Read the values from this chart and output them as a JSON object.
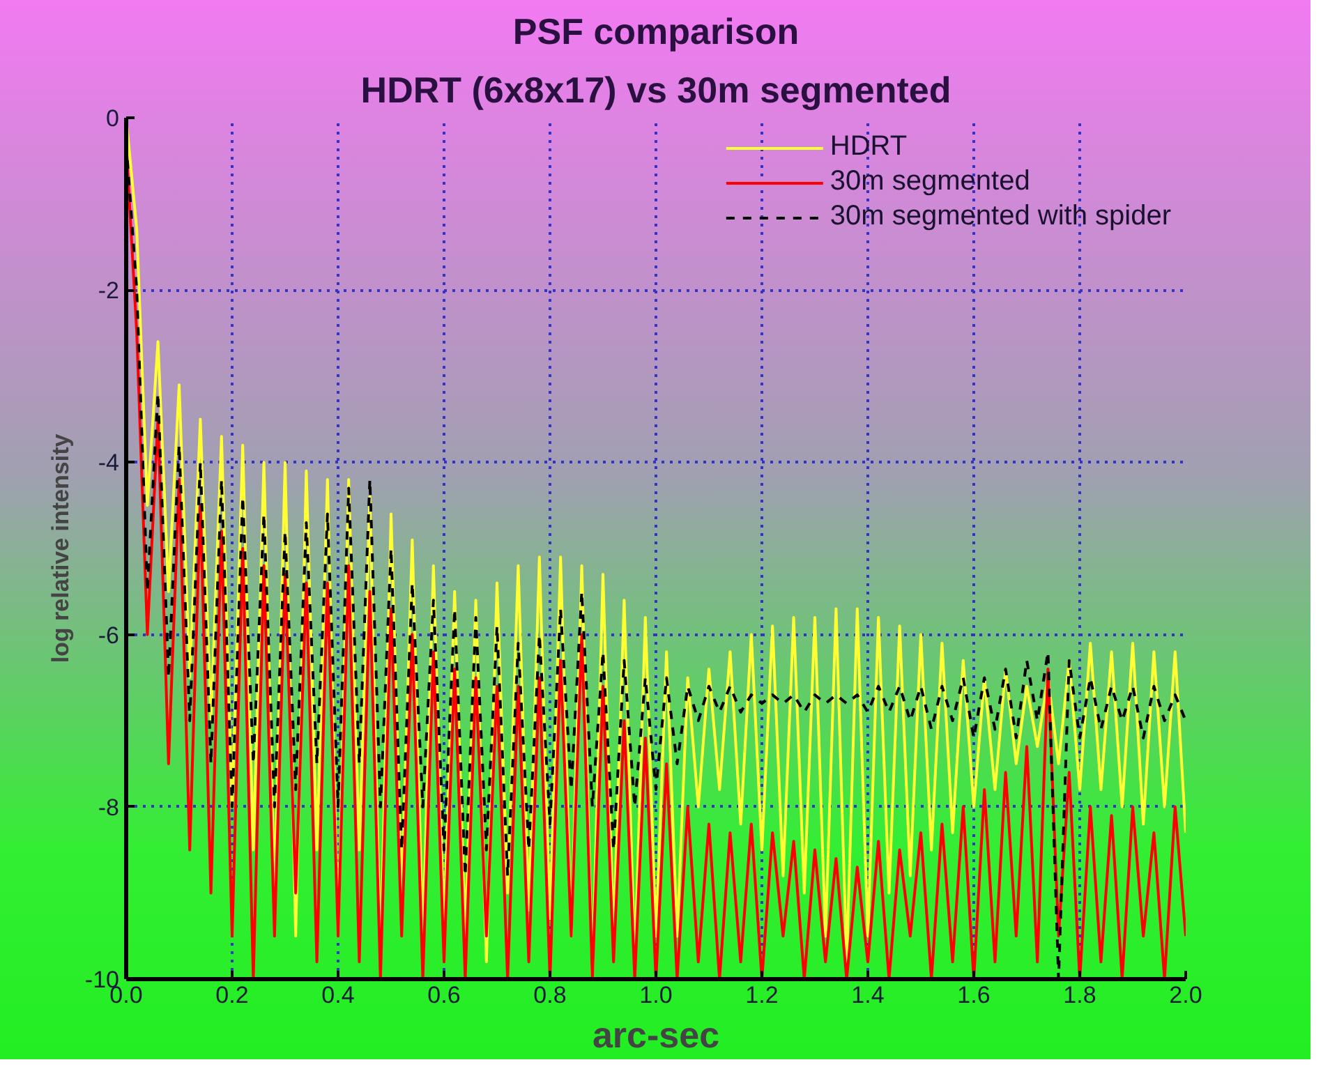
{
  "chart_data": {
    "type": "line",
    "title": "PSF comparison",
    "subtitle": "HDRT (6x8x17) vs 30m segmented",
    "xlabel": "arc-sec",
    "ylabel": "log relative intensity",
    "x": [
      0,
      0.02,
      0.04,
      0.06,
      0.08,
      0.1,
      0.12,
      0.14,
      0.16,
      0.18,
      0.2,
      0.22,
      0.24,
      0.26,
      0.28,
      0.3,
      0.32,
      0.34,
      0.36,
      0.38,
      0.4,
      0.42,
      0.44,
      0.46,
      0.48,
      0.5,
      0.52,
      0.54,
      0.56,
      0.58,
      0.6,
      0.62,
      0.64,
      0.66,
      0.68,
      0.7,
      0.72,
      0.74,
      0.76,
      0.78,
      0.8,
      0.82,
      0.84,
      0.86,
      0.88,
      0.9,
      0.92,
      0.94,
      0.96,
      0.98,
      1.0,
      1.02,
      1.04,
      1.06,
      1.08,
      1.1,
      1.12,
      1.14,
      1.16,
      1.18,
      1.2,
      1.22,
      1.24,
      1.26,
      1.28,
      1.3,
      1.32,
      1.34,
      1.36,
      1.38,
      1.4,
      1.42,
      1.44,
      1.46,
      1.48,
      1.5,
      1.52,
      1.54,
      1.56,
      1.58,
      1.6,
      1.62,
      1.64,
      1.66,
      1.68,
      1.7,
      1.72,
      1.74,
      1.76,
      1.78,
      1.8,
      1.82,
      1.84,
      1.86,
      1.88,
      1.9,
      1.92,
      1.94,
      1.96,
      1.98,
      2.0
    ],
    "series": [
      {
        "name": "HDRT",
        "color": "#ffff33",
        "values": [
          0,
          -1.3,
          -4.5,
          -2.6,
          -5.5,
          -3.1,
          -6.5,
          -3.5,
          -7,
          -3.7,
          -8,
          -3.8,
          -8.5,
          -4.0,
          -9,
          -4.0,
          -9.5,
          -4.1,
          -8.5,
          -4.2,
          -9.5,
          -4.2,
          -8.5,
          -4.4,
          -9.8,
          -4.6,
          -9,
          -4.9,
          -9.5,
          -5.2,
          -9.4,
          -5.5,
          -9.5,
          -5.6,
          -9.8,
          -5.4,
          -9,
          -5.2,
          -9.2,
          -5.1,
          -9.3,
          -5.1,
          -9.5,
          -5.2,
          -10,
          -5.3,
          -9.5,
          -5.6,
          -9.8,
          -5.8,
          -9.5,
          -6.2,
          -9.5,
          -6.5,
          -8,
          -6.4,
          -7.8,
          -6.2,
          -8.2,
          -6.0,
          -8.5,
          -5.9,
          -8.8,
          -5.8,
          -9,
          -5.8,
          -9.5,
          -5.7,
          -9.8,
          -5.7,
          -9.5,
          -5.8,
          -9,
          -5.9,
          -8.8,
          -6.0,
          -8.5,
          -6.1,
          -8.3,
          -6.3,
          -8.0,
          -6.5,
          -7.8,
          -6.4,
          -7.5,
          -6.6,
          -7.3,
          -6.5,
          -7.5,
          -6.3,
          -7.8,
          -6.1,
          -7.8,
          -6.2,
          -8,
          -6.1,
          -8.2,
          -6.2,
          -8,
          -6.2,
          -8.3
        ]
      },
      {
        "name": "30m segmented",
        "color": "#ff0000",
        "values": [
          -0.3,
          -2.5,
          -6,
          -3.5,
          -7.5,
          -4.2,
          -8.5,
          -4.5,
          -9,
          -4.8,
          -9.5,
          -5,
          -10,
          -5.2,
          -9.5,
          -5.3,
          -9,
          -5.4,
          -9.8,
          -5.4,
          -9.5,
          -5.2,
          -9.8,
          -5.5,
          -10,
          -5.7,
          -9.5,
          -6,
          -10,
          -6.2,
          -9.8,
          -6.4,
          -10,
          -6.5,
          -9.5,
          -6.6,
          -10,
          -6.6,
          -9.8,
          -6.5,
          -10,
          -6.3,
          -9.5,
          -6.0,
          -10,
          -6.6,
          -9.8,
          -7.0,
          -10,
          -7.2,
          -10,
          -7.5,
          -10,
          -8,
          -9.8,
          -8.2,
          -10,
          -8.3,
          -9.8,
          -8.2,
          -10,
          -8.3,
          -9.5,
          -8.4,
          -10,
          -8.5,
          -9.8,
          -8.6,
          -10,
          -8.7,
          -9.8,
          -8.4,
          -10,
          -8.5,
          -9.5,
          -8.3,
          -10,
          -8.2,
          -9.8,
          -8.0,
          -10,
          -7.8,
          -9.8,
          -7.6,
          -9.5,
          -7.3,
          -9.8,
          -6.4,
          -9.5,
          -7.6,
          -10,
          -8.0,
          -9.8,
          -8.1,
          -10,
          -8.0,
          -9.5,
          -8.3,
          -10,
          -8.0,
          -9.5
        ]
      },
      {
        "name": "30m segmented with spider",
        "color": "#000000",
        "line_style": "dashed",
        "values": [
          -0.3,
          -2.0,
          -5.5,
          -3.2,
          -6.5,
          -3.8,
          -7,
          -4.0,
          -7.5,
          -4.2,
          -8,
          -4.4,
          -7.5,
          -4.6,
          -8,
          -4.8,
          -7.8,
          -4.7,
          -7.5,
          -4.6,
          -8,
          -4.3,
          -7.5,
          -4.2,
          -8,
          -5.0,
          -8.5,
          -5.4,
          -8,
          -5.6,
          -8.5,
          -5.7,
          -8.8,
          -5.8,
          -8.5,
          -5.9,
          -8.8,
          -6.1,
          -8.5,
          -6.0,
          -8.2,
          -5.7,
          -7.8,
          -5.5,
          -8,
          -6.2,
          -8.5,
          -6.3,
          -8,
          -6.5,
          -7.8,
          -6.5,
          -7.5,
          -6.6,
          -7.0,
          -6.6,
          -6.9,
          -6.6,
          -6.9,
          -6.7,
          -6.8,
          -6.7,
          -6.8,
          -6.7,
          -6.9,
          -6.7,
          -6.8,
          -6.7,
          -6.8,
          -6.7,
          -6.9,
          -6.6,
          -6.9,
          -6.6,
          -7.0,
          -6.6,
          -7.1,
          -6.6,
          -7.0,
          -6.5,
          -7.2,
          -6.5,
          -7.1,
          -6.4,
          -7.2,
          -6.3,
          -7.0,
          -6.2,
          -10,
          -6.3,
          -7.2,
          -6.5,
          -7.1,
          -6.6,
          -7.0,
          -6.6,
          -7.2,
          -6.6,
          -7.0,
          -6.7,
          -7.0
        ]
      }
    ],
    "xlim": [
      0,
      2.0
    ],
    "ylim": [
      -10,
      0
    ],
    "xticks": [
      {
        "value": 0,
        "label": "0.0"
      },
      0.2,
      0.4,
      0.6,
      0.8,
      {
        "value": 1.0,
        "label": "1.0"
      },
      1.2,
      1.4,
      1.6,
      1.8,
      {
        "value": 2.0,
        "label": "2.0"
      }
    ],
    "yticks": [
      -10,
      -8,
      -6,
      -4,
      -2,
      0
    ],
    "grid": true,
    "legend": "top right",
    "line_style": "solid",
    "marker": "none"
  }
}
